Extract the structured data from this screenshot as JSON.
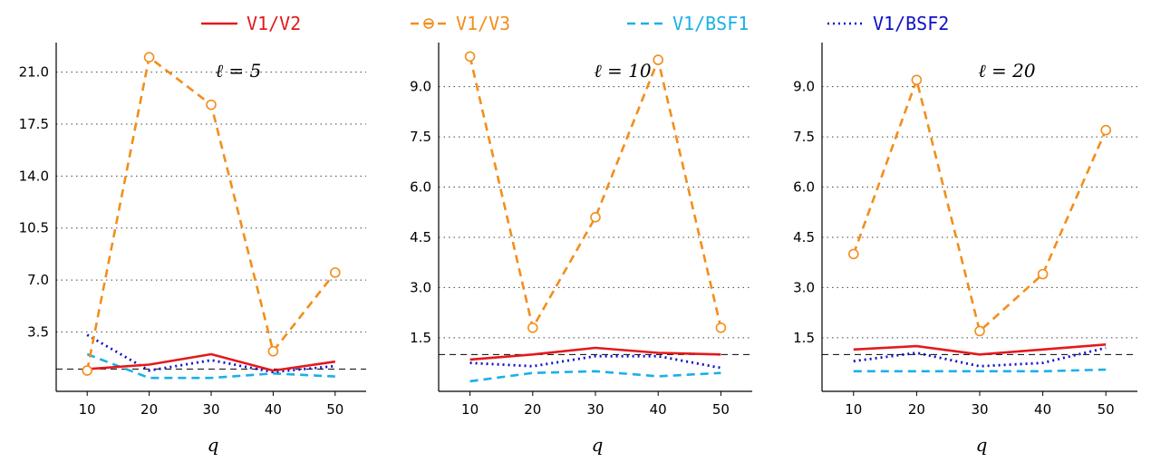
{
  "legend": {
    "items": [
      {
        "label": "V1/V2",
        "color": "#e31a1c",
        "dash": "solid",
        "marker": "none"
      },
      {
        "label": "V1/V3",
        "color": "#f28e1c",
        "dash": "dashed",
        "marker": "circle"
      },
      {
        "label": "V1/BSF1",
        "color": "#1ab0e8",
        "dash": "dashed",
        "marker": "none"
      },
      {
        "label": "V1/BSF2",
        "color": "#1010c8",
        "dash": "dotted",
        "marker": "none"
      }
    ]
  },
  "chart_data": [
    {
      "type": "line",
      "title": "ℓ = 5",
      "xlabel": "q",
      "ylabel": "",
      "x": [
        10,
        20,
        30,
        40,
        50
      ],
      "xlim": [
        5,
        55
      ],
      "ylim": [
        -0.5,
        22.5
      ],
      "yticks": [
        3.5,
        7.0,
        10.5,
        14.0,
        17.5,
        21.0
      ],
      "ytick_labels": [
        "3.5",
        "7.0",
        "10.5",
        "14.0",
        "17.5",
        "21.0"
      ],
      "reference_line": 1.0,
      "grid": "horizontal-dotted",
      "series": [
        {
          "name": "V1/V2",
          "values": [
            1.0,
            1.3,
            2.0,
            0.9,
            1.5
          ]
        },
        {
          "name": "V1/V3",
          "values": [
            0.9,
            22.0,
            18.8,
            2.2,
            7.5
          ]
        },
        {
          "name": "V1/BSF1",
          "values": [
            2.0,
            0.4,
            0.4,
            0.7,
            0.5
          ]
        },
        {
          "name": "V1/BSF2",
          "values": [
            3.3,
            0.9,
            1.6,
            0.8,
            1.2
          ]
        }
      ]
    },
    {
      "type": "line",
      "title": "ℓ = 10",
      "xlabel": "q",
      "ylabel": "",
      "x": [
        10,
        20,
        30,
        40,
        50
      ],
      "xlim": [
        5,
        55
      ],
      "ylim": [
        -0.1,
        10.1
      ],
      "yticks": [
        1.5,
        3.0,
        4.5,
        6.0,
        7.5,
        9.0
      ],
      "ytick_labels": [
        "1.5",
        "3.0",
        "4.5",
        "6.0",
        "7.5",
        "9.0"
      ],
      "reference_line": 1.0,
      "grid": "horizontal-dotted",
      "series": [
        {
          "name": "V1/V2",
          "values": [
            0.85,
            1.0,
            1.2,
            1.05,
            1.0
          ]
        },
        {
          "name": "V1/V3",
          "values": [
            9.9,
            1.8,
            5.1,
            9.8,
            1.8
          ]
        },
        {
          "name": "V1/BSF1",
          "values": [
            0.2,
            0.45,
            0.5,
            0.35,
            0.45
          ]
        },
        {
          "name": "V1/BSF2",
          "values": [
            0.75,
            0.65,
            0.95,
            0.95,
            0.6
          ]
        }
      ]
    },
    {
      "type": "line",
      "title": "ℓ = 20",
      "xlabel": "q",
      "ylabel": "",
      "x": [
        10,
        20,
        30,
        40,
        50
      ],
      "xlim": [
        5,
        55
      ],
      "ylim": [
        -0.1,
        10.1
      ],
      "yticks": [
        1.5,
        3.0,
        4.5,
        6.0,
        7.5,
        9.0
      ],
      "ytick_labels": [
        "1.5",
        "3.0",
        "4.5",
        "6.0",
        "7.5",
        "9.0"
      ],
      "reference_line": 1.0,
      "grid": "horizontal-dotted",
      "series": [
        {
          "name": "V1/V2",
          "values": [
            1.15,
            1.25,
            1.0,
            1.15,
            1.3
          ]
        },
        {
          "name": "V1/V3",
          "values": [
            4.0,
            9.2,
            1.7,
            3.4,
            7.7
          ]
        },
        {
          "name": "V1/BSF1",
          "values": [
            0.5,
            0.5,
            0.5,
            0.5,
            0.55
          ]
        },
        {
          "name": "V1/BSF2",
          "values": [
            0.8,
            1.05,
            0.65,
            0.75,
            1.2
          ]
        }
      ]
    }
  ]
}
